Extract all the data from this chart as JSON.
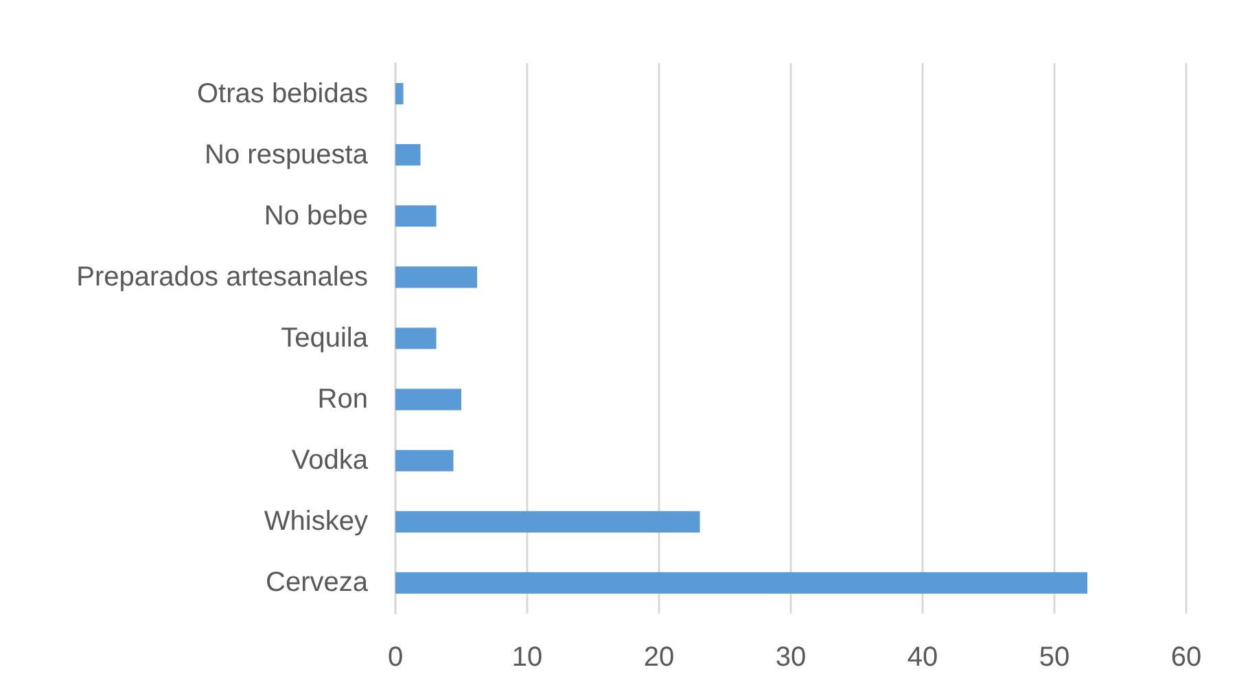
{
  "chart_data": {
    "type": "bar",
    "orientation": "horizontal",
    "categories": [
      "Otras bebidas",
      "No respuesta",
      "No bebe",
      "Preparados artesanales",
      "Tequila",
      "Ron",
      "Vodka",
      "Whiskey",
      "Cerveza"
    ],
    "values": [
      0.6,
      1.9,
      3.1,
      6.2,
      3.1,
      5.0,
      4.4,
      23.1,
      52.5
    ],
    "color": "#5b9bd5",
    "xlim": [
      0,
      60
    ],
    "xticks": [
      0,
      10,
      20,
      30,
      40,
      50,
      60
    ],
    "grid": "x"
  }
}
